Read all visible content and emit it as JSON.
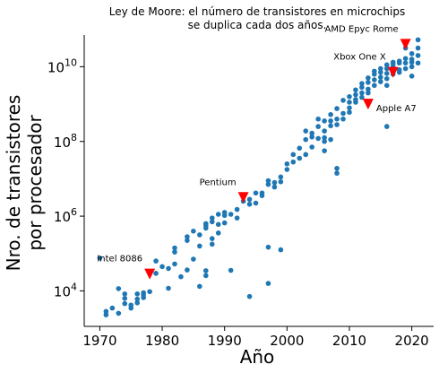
{
  "chart_data": {
    "type": "scatter",
    "title": [
      "Ley de Moore: el número de transistores en microchips",
      "se duplica cada dos años."
    ],
    "xlabel": "Año",
    "ylabel": [
      "Nro. de transistores",
      "por procesador"
    ],
    "xlim": [
      1967.5,
      2023.5
    ],
    "ylim_log10": [
      3.05,
      10.85
    ],
    "y_scale": "log",
    "grid": false,
    "xticks": [
      1970,
      1980,
      1990,
      2000,
      2010,
      2020
    ],
    "xtick_labels": [
      "1970",
      "1980",
      "1990",
      "2000",
      "2010",
      "2020"
    ],
    "yticks_log10": [
      4,
      6,
      8,
      10
    ],
    "ytick_labels": [
      {
        "base": "10",
        "exp": "4"
      },
      {
        "base": "10",
        "exp": "6"
      },
      {
        "base": "10",
        "exp": "8"
      },
      {
        "base": "10",
        "exp": "10"
      }
    ],
    "point_color": "#1f77b4",
    "highlight_color": "#ff0000",
    "points": [
      [
        1970,
        4.88
      ],
      [
        1971,
        3.36
      ],
      [
        1971,
        3.45
      ],
      [
        1972,
        3.54
      ],
      [
        1973,
        3.4
      ],
      [
        1973,
        4.06
      ],
      [
        1974,
        3.66
      ],
      [
        1974,
        3.8
      ],
      [
        1974,
        3.92
      ],
      [
        1975,
        3.54
      ],
      [
        1975,
        3.62
      ],
      [
        1976,
        3.68
      ],
      [
        1976,
        3.78
      ],
      [
        1976,
        3.92
      ],
      [
        1977,
        3.82
      ],
      [
        1977,
        3.95
      ],
      [
        1977,
        3.9
      ],
      [
        1978,
        3.98
      ],
      [
        1979,
        4.47
      ],
      [
        1979,
        4.8
      ],
      [
        1980,
        4.65
      ],
      [
        1981,
        4.07
      ],
      [
        1981,
        4.6
      ],
      [
        1982,
        4.72
      ],
      [
        1982,
        5.04
      ],
      [
        1982,
        5.15
      ],
      [
        1983,
        4.38
      ],
      [
        1984,
        4.56
      ],
      [
        1984,
        5.35
      ],
      [
        1984,
        5.45
      ],
      [
        1985,
        4.85
      ],
      [
        1985,
        5.6
      ],
      [
        1986,
        4.12
      ],
      [
        1986,
        5.2
      ],
      [
        1986,
        5.5
      ],
      [
        1987,
        4.41
      ],
      [
        1987,
        4.54
      ],
      [
        1987,
        5.75
      ],
      [
        1987,
        5.8
      ],
      [
        1987,
        5.68
      ],
      [
        1988,
        5.4
      ],
      [
        1988,
        5.25
      ],
      [
        1988,
        5.95
      ],
      [
        1988,
        5.85
      ],
      [
        1989,
        6.05
      ],
      [
        1989,
        5.78
      ],
      [
        1989,
        5.55
      ],
      [
        1990,
        6.1
      ],
      [
        1990,
        6.02
      ],
      [
        1990,
        5.82
      ],
      [
        1991,
        4.55
      ],
      [
        1991,
        6.05
      ],
      [
        1992,
        6.18
      ],
      [
        1992,
        5.95
      ],
      [
        1993,
        6.4
      ],
      [
        1994,
        6.32
      ],
      [
        1994,
        6.45
      ],
      [
        1994,
        3.85
      ],
      [
        1995,
        6.62
      ],
      [
        1995,
        6.35
      ],
      [
        1996,
        6.62
      ],
      [
        1996,
        6.55
      ],
      [
        1997,
        6.85
      ],
      [
        1997,
        6.95
      ],
      [
        1997,
        5.17
      ],
      [
        1997,
        4.2
      ],
      [
        1998,
        6.78
      ],
      [
        1998,
        6.9
      ],
      [
        1999,
        7.05
      ],
      [
        1999,
        6.92
      ],
      [
        1999,
        5.1
      ],
      [
        2000,
        7.4
      ],
      [
        2000,
        7.25
      ],
      [
        2001,
        7.45
      ],
      [
        2001,
        7.65
      ],
      [
        2002,
        7.55
      ],
      [
        2002,
        7.82
      ],
      [
        2003,
        7.65
      ],
      [
        2003,
        8.28
      ],
      [
        2003,
        8.05
      ],
      [
        2004,
        8.12
      ],
      [
        2004,
        8.22
      ],
      [
        2004,
        7.85
      ],
      [
        2005,
        8.08
      ],
      [
        2005,
        8.4
      ],
      [
        2005,
        8.6
      ],
      [
        2006,
        8.1
      ],
      [
        2006,
        8.28
      ],
      [
        2006,
        8.55
      ],
      [
        2006,
        7.75
      ],
      [
        2006,
        8.0
      ],
      [
        2007,
        8.55
      ],
      [
        2007,
        8.42
      ],
      [
        2007,
        8.72
      ],
      [
        2007,
        8.05
      ],
      [
        2008,
        8.6
      ],
      [
        2008,
        8.88
      ],
      [
        2008,
        7.15
      ],
      [
        2008,
        8.45
      ],
      [
        2008,
        7.28
      ],
      [
        2009,
        8.75
      ],
      [
        2009,
        8.6
      ],
      [
        2009,
        9.1
      ],
      [
        2010,
        8.9
      ],
      [
        2010,
        9.05
      ],
      [
        2010,
        9.2
      ],
      [
        2010,
        8.78
      ],
      [
        2011,
        9.25
      ],
      [
        2011,
        9.12
      ],
      [
        2011,
        9.38
      ],
      [
        2011,
        9.05
      ],
      [
        2012,
        9.3
      ],
      [
        2012,
        9.45
      ],
      [
        2012,
        9.55
      ],
      [
        2012,
        9.18
      ],
      [
        2013,
        9.4
      ],
      [
        2013,
        9.58
      ],
      [
        2013,
        9.7
      ],
      [
        2013,
        9.3
      ],
      [
        2014,
        9.5
      ],
      [
        2014,
        9.65
      ],
      [
        2014,
        9.8
      ],
      [
        2014,
        9.88
      ],
      [
        2015,
        9.6
      ],
      [
        2015,
        9.72
      ],
      [
        2015,
        9.85
      ],
      [
        2015,
        9.95
      ],
      [
        2016,
        9.68
      ],
      [
        2016,
        9.82
      ],
      [
        2016,
        9.95
      ],
      [
        2016,
        10.05
      ],
      [
        2016,
        9.5
      ],
      [
        2016,
        8.4
      ],
      [
        2017,
        9.8
      ],
      [
        2017,
        9.9
      ],
      [
        2017,
        10.0
      ],
      [
        2017,
        10.08
      ],
      [
        2017,
        10.12
      ],
      [
        2018,
        9.85
      ],
      [
        2018,
        9.92
      ],
      [
        2018,
        10.1
      ],
      [
        2018,
        10.15
      ],
      [
        2019,
        9.95
      ],
      [
        2019,
        10.1
      ],
      [
        2019,
        10.22
      ],
      [
        2019,
        10.5
      ],
      [
        2020,
        9.75
      ],
      [
        2020,
        10.0
      ],
      [
        2020,
        10.12
      ],
      [
        2020,
        10.2
      ],
      [
        2020,
        10.35
      ],
      [
        2021,
        10.1
      ],
      [
        2021,
        10.3
      ],
      [
        2021,
        10.5
      ],
      [
        2021,
        10.72
      ]
    ],
    "highlights": [
      {
        "name": "Intel 8086",
        "x": 1978,
        "y_log10": 4.45,
        "label_pos": "above-left"
      },
      {
        "name": "Pentium",
        "x": 1993,
        "y_log10": 6.5,
        "label_pos": "above-left"
      },
      {
        "name": "Apple A7",
        "x": 2013,
        "y_log10": 9.0,
        "label_pos": "right"
      },
      {
        "name": "Xbox One X",
        "x": 2017,
        "y_log10": 9.85,
        "label_pos": "above-left"
      },
      {
        "name": "AMD Epyc Rome",
        "x": 2019,
        "y_log10": 10.6,
        "label_pos": "above-left"
      }
    ]
  }
}
